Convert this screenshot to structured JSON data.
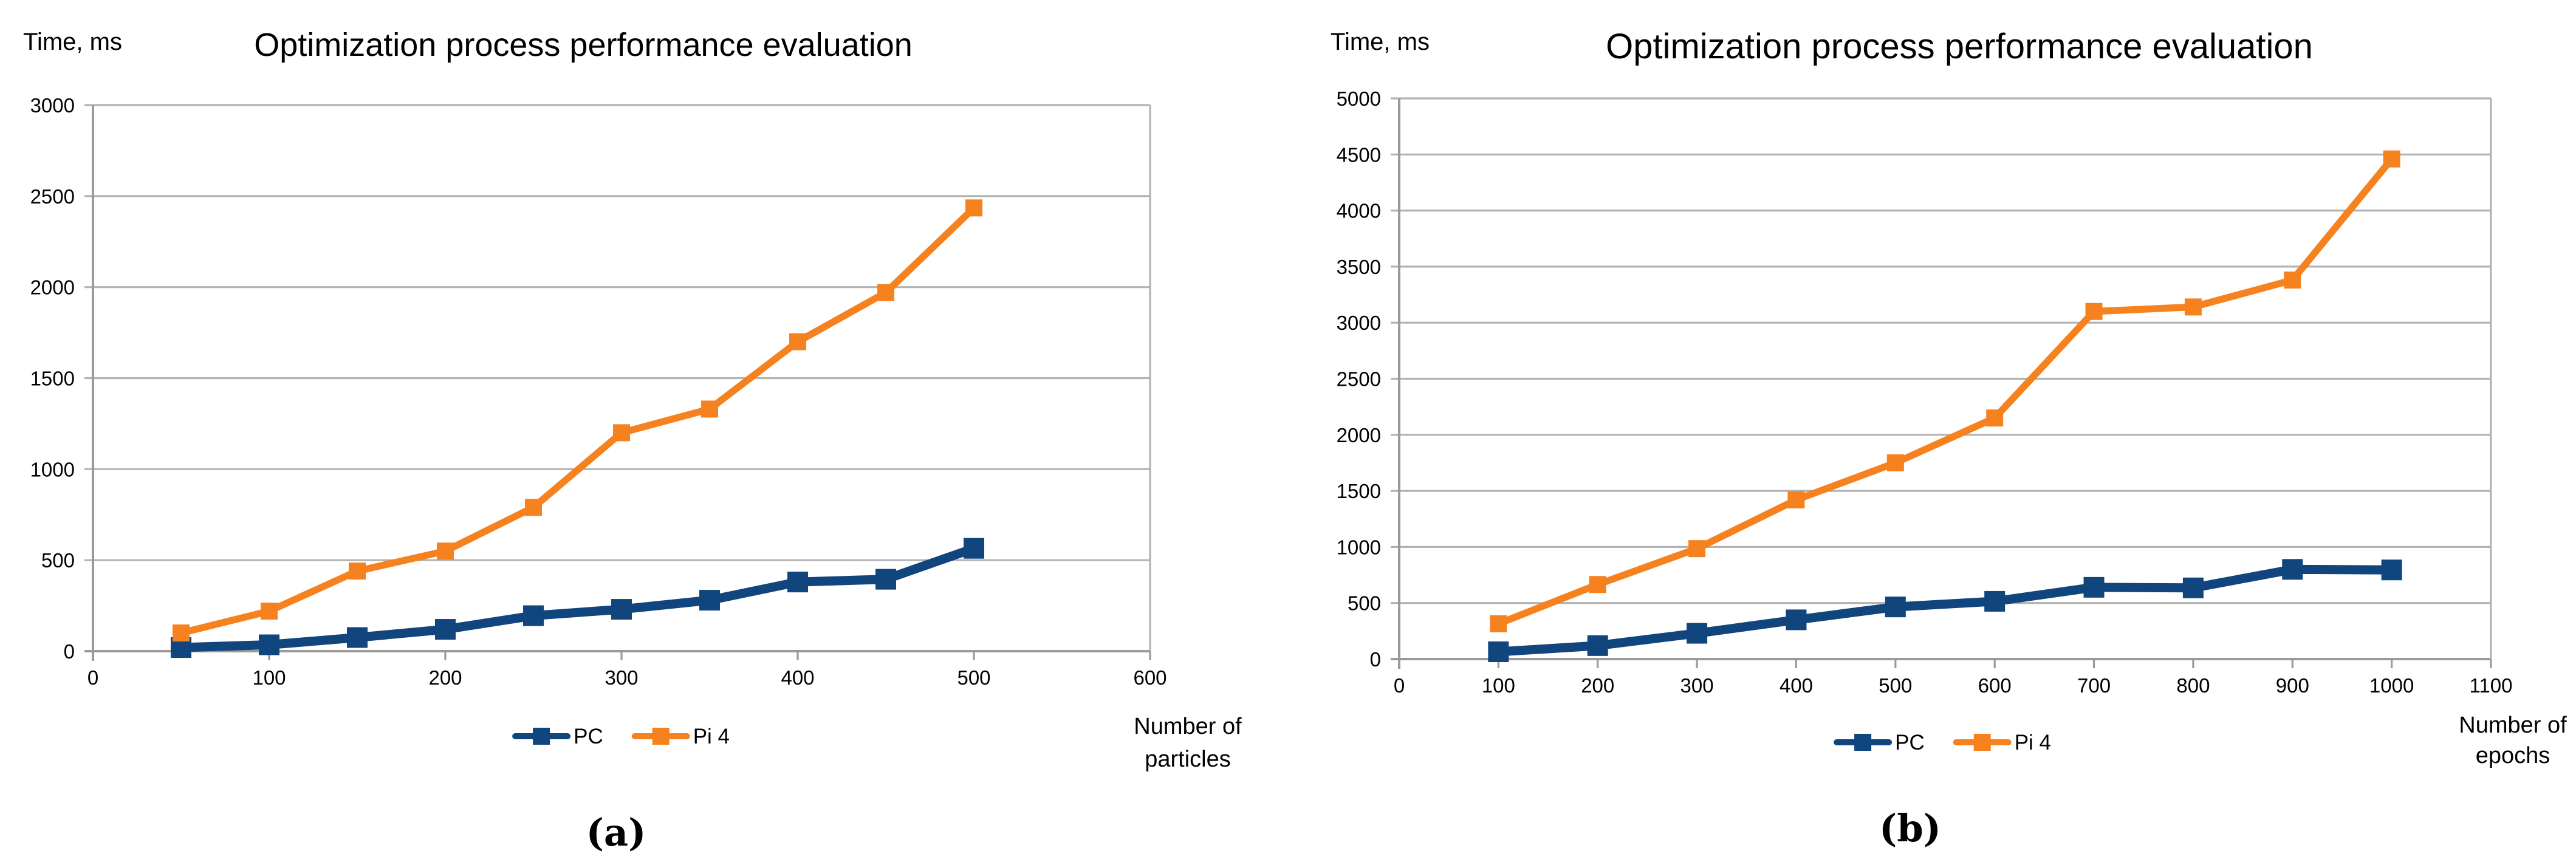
{
  "figure": {
    "background": "#ffffff",
    "grid_color": "#b2b2b2",
    "axis_color": "#9a9a9a"
  },
  "chart_data": [
    {
      "type": "line",
      "panel_label": "(a)",
      "title": "Optimization process performance evaluation",
      "ylabel": "Time, ms",
      "xlabel": "Number of particles",
      "xlabel_lines": [
        "Number of",
        "particles"
      ],
      "xlim": [
        0,
        600
      ],
      "ylim": [
        0,
        3000
      ],
      "xticks": [
        0,
        100,
        200,
        300,
        400,
        500,
        600
      ],
      "yticks": [
        0,
        500,
        1000,
        1500,
        2000,
        2500,
        3000
      ],
      "grid": "horizontal",
      "legend_position": "bottom",
      "x": [
        50,
        100,
        150,
        200,
        250,
        300,
        350,
        400,
        450,
        500
      ],
      "series": [
        {
          "name": "PC",
          "color": "#11457e",
          "values": [
            20,
            35,
            75,
            120,
            195,
            230,
            280,
            380,
            395,
            565
          ]
        },
        {
          "name": "Pi 4",
          "color": "#f6821f",
          "values": [
            100,
            220,
            440,
            550,
            790,
            1200,
            1330,
            1700,
            1970,
            2435
          ]
        }
      ]
    },
    {
      "type": "line",
      "panel_label": "(b)",
      "title": "Optimization process performance evaluation",
      "ylabel": "Time, ms",
      "xlabel": "Number of epochs",
      "xlabel_lines": [
        "Number of",
        "epochs"
      ],
      "xlim": [
        0,
        1100
      ],
      "ylim": [
        0,
        5000
      ],
      "xticks": [
        0,
        100,
        200,
        300,
        400,
        500,
        600,
        700,
        800,
        900,
        1000,
        1100
      ],
      "yticks": [
        0,
        500,
        1000,
        1500,
        2000,
        2500,
        3000,
        3500,
        4000,
        4500,
        5000
      ],
      "grid": "horizontal",
      "legend_position": "bottom",
      "x": [
        100,
        200,
        300,
        400,
        500,
        600,
        700,
        800,
        900,
        1000
      ],
      "series": [
        {
          "name": "PC",
          "color": "#11457e",
          "values": [
            65,
            120,
            230,
            350,
            465,
            515,
            640,
            635,
            800,
            795
          ]
        },
        {
          "name": "Pi 4",
          "color": "#f6821f",
          "values": [
            315,
            665,
            985,
            1420,
            1750,
            2150,
            3100,
            3140,
            3380,
            4460
          ]
        }
      ]
    }
  ]
}
